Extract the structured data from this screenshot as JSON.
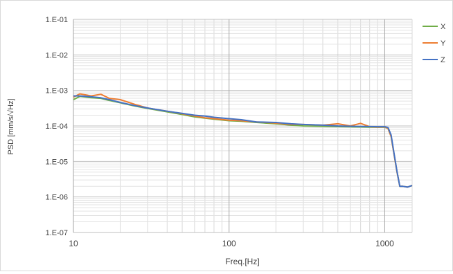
{
  "chart_data": {
    "type": "line",
    "title": "",
    "xlabel": "Freq.[Hz]",
    "ylabel": "PSD [mm/s/√Hz]",
    "x_scale": "log",
    "y_scale": "log",
    "xlim": [
      10,
      1500
    ],
    "ylim": [
      1e-07,
      0.1
    ],
    "x_ticks": [
      10,
      100,
      1000
    ],
    "x_tick_labels": [
      "10",
      "100",
      "1000"
    ],
    "y_ticks": [
      1e-07,
      1e-06,
      1e-05,
      0.0001,
      0.001,
      0.01,
      0.1
    ],
    "y_tick_labels": [
      "1.E-07",
      "1.E-06",
      "1.E-05",
      "1.E-04",
      "1.E-03",
      "1.E-02",
      "1.E-01"
    ],
    "grid": true,
    "legend_position": "top-right",
    "series": [
      {
        "name": "X",
        "color": "#70AD47",
        "x": [
          10,
          11,
          12,
          13,
          15,
          17,
          20,
          25,
          30,
          40,
          50,
          60,
          70,
          80,
          100,
          120,
          150,
          200,
          250,
          300,
          400,
          500,
          600,
          700,
          800,
          900,
          1000,
          1050,
          1100,
          1150,
          1200,
          1250,
          1300,
          1400,
          1500
        ],
        "y": [
          0.00055,
          0.00068,
          0.00065,
          0.00062,
          0.0006,
          0.00052,
          0.00045,
          0.00036,
          0.00031,
          0.00025,
          0.00021,
          0.00018,
          0.000165,
          0.000155,
          0.00014,
          0.000135,
          0.000125,
          0.000115,
          0.000105,
          0.0001,
          9.75e-05,
          9.55e-05,
          9.45e-05,
          9.35e-05,
          9.25e-05,
          9.2e-05,
          9.2e-05,
          8.5e-05,
          5e-05,
          1.5e-05,
          5e-06,
          2e-06,
          2e-06,
          1.9e-06,
          2.1e-06
        ]
      },
      {
        "name": "Y",
        "color": "#ED7D31",
        "x": [
          10,
          11,
          12,
          13,
          15,
          17,
          20,
          25,
          30,
          40,
          50,
          60,
          70,
          80,
          100,
          120,
          150,
          200,
          250,
          300,
          400,
          500,
          600,
          700,
          800,
          900,
          1000,
          1050,
          1100,
          1150,
          1200,
          1250,
          1300,
          1400,
          1500
        ],
        "y": [
          0.00065,
          0.0008,
          0.00075,
          0.0007,
          0.00078,
          0.0006,
          0.00055,
          0.0004,
          0.00032,
          0.00026,
          0.00022,
          0.00019,
          0.00017,
          0.00016,
          0.000145,
          0.00014,
          0.00013,
          0.00012,
          0.00011,
          0.00011,
          0.000105,
          0.000115,
          0.0001,
          0.000118,
          9.5e-05,
          9.3e-05,
          9.4e-05,
          8.6e-05,
          5e-05,
          1.5e-05,
          5e-06,
          2e-06,
          2e-06,
          1.9e-06,
          2.1e-06
        ]
      },
      {
        "name": "Z",
        "color": "#4472C4",
        "x": [
          10,
          11,
          12,
          13,
          15,
          17,
          20,
          25,
          30,
          40,
          50,
          60,
          70,
          80,
          100,
          120,
          150,
          200,
          250,
          300,
          400,
          500,
          600,
          700,
          800,
          900,
          1000,
          1050,
          1100,
          1150,
          1200,
          1250,
          1300,
          1400,
          1500
        ],
        "y": [
          0.0007,
          0.0007,
          0.00068,
          0.00066,
          0.00062,
          0.00055,
          0.00046,
          0.00037,
          0.00032,
          0.00026,
          0.000225,
          0.0002,
          0.00019,
          0.000175,
          0.00016,
          0.00015,
          0.00013,
          0.000125,
          0.000115,
          0.00011,
          0.000105,
          0.0001,
          9.8e-05,
          9.7e-05,
          9.6e-05,
          9.5e-05,
          9.5e-05,
          9e-05,
          5.5e-05,
          1.6e-05,
          5.2e-06,
          2e-06,
          2e-06,
          1.9e-06,
          2.1e-06
        ]
      }
    ]
  }
}
